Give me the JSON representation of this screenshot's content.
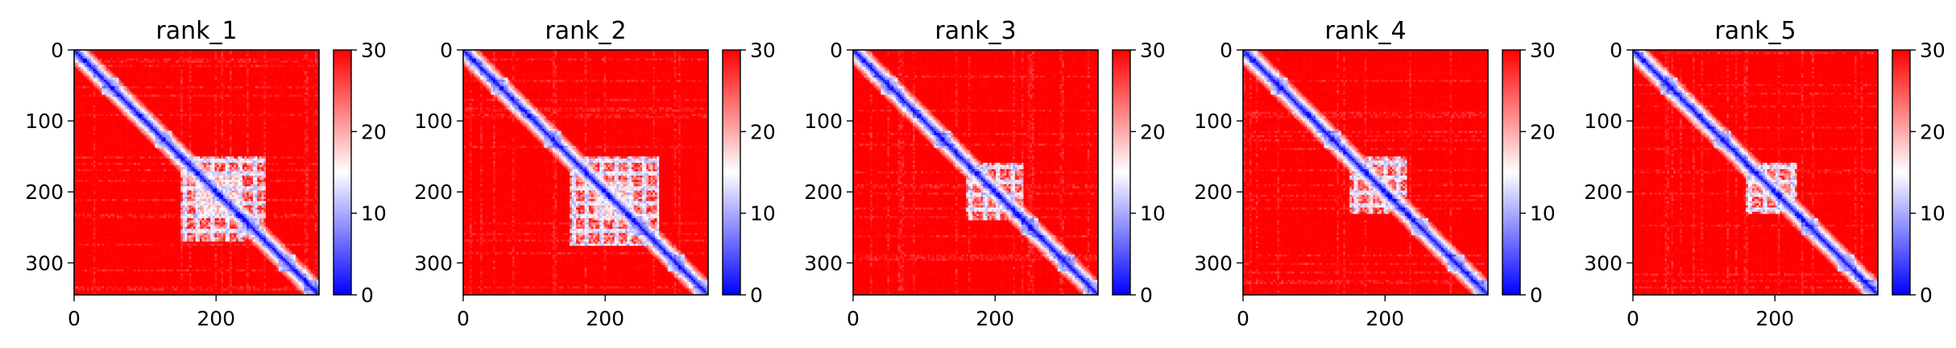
{
  "chart_data": [
    {
      "type": "heatmap",
      "title": "rank_1",
      "x_ticks": [
        0,
        200
      ],
      "y_ticks": [
        0,
        100,
        200,
        300
      ],
      "colorbar": {
        "ticks": [
          0,
          10,
          20,
          30
        ],
        "range": [
          0,
          30
        ],
        "colormap": "bwr",
        "colors": [
          "#0000ff",
          "#ffffff",
          "#ff0000"
        ]
      },
      "size": 345,
      "features": {
        "blocks": [
          {
            "start": 150,
            "end": 270
          },
          {
            "start": 170,
            "end": 230
          }
        ],
        "grid_pattern": [
          155,
          175,
          195,
          215,
          235,
          255,
          275
        ]
      }
    },
    {
      "type": "heatmap",
      "title": "rank_2",
      "x_ticks": [
        0,
        200
      ],
      "y_ticks": [
        0,
        100,
        200,
        300
      ],
      "colorbar": {
        "ticks": [
          0,
          10,
          20,
          30
        ],
        "range": [
          0,
          30
        ],
        "colormap": "bwr",
        "colors": [
          "#0000ff",
          "#ffffff",
          "#ff0000"
        ]
      },
      "size": 345,
      "features": {
        "blocks": [
          {
            "start": 150,
            "end": 275
          },
          {
            "start": 185,
            "end": 240
          }
        ],
        "grid_pattern": [
          155,
          175,
          195,
          215,
          235,
          255,
          275
        ]
      }
    },
    {
      "type": "heatmap",
      "title": "rank_3",
      "x_ticks": [
        0,
        200
      ],
      "y_ticks": [
        0,
        100,
        200,
        300
      ],
      "colorbar": {
        "ticks": [
          0,
          10,
          20,
          30
        ],
        "range": [
          0,
          30
        ],
        "colormap": "bwr",
        "colors": [
          "#0000ff",
          "#ffffff",
          "#ff0000"
        ]
      },
      "size": 345,
      "features": {
        "blocks": [
          {
            "start": 160,
            "end": 240
          }
        ],
        "grid_pattern": [
          165,
          185,
          205,
          225
        ]
      }
    },
    {
      "type": "heatmap",
      "title": "rank_4",
      "x_ticks": [
        0,
        200
      ],
      "y_ticks": [
        0,
        100,
        200,
        300
      ],
      "colorbar": {
        "ticks": [
          0,
          10,
          20,
          30
        ],
        "range": [
          0,
          30
        ],
        "colormap": "bwr",
        "colors": [
          "#0000ff",
          "#ffffff",
          "#ff0000"
        ]
      },
      "size": 345,
      "features": {
        "blocks": [
          {
            "start": 150,
            "end": 230
          }
        ],
        "grid_pattern": [
          160,
          180,
          200,
          220
        ]
      }
    },
    {
      "type": "heatmap",
      "title": "rank_5",
      "x_ticks": [
        0,
        200
      ],
      "y_ticks": [
        0,
        100,
        200,
        300
      ],
      "colorbar": {
        "ticks": [
          0,
          10,
          20,
          30
        ],
        "range": [
          0,
          30
        ],
        "colormap": "bwr",
        "colors": [
          "#0000ff",
          "#ffffff",
          "#ff0000"
        ]
      },
      "size": 345,
      "features": {
        "blocks": [
          {
            "start": 160,
            "end": 230
          }
        ],
        "grid_pattern": [
          165,
          185,
          205,
          225
        ]
      }
    }
  ]
}
